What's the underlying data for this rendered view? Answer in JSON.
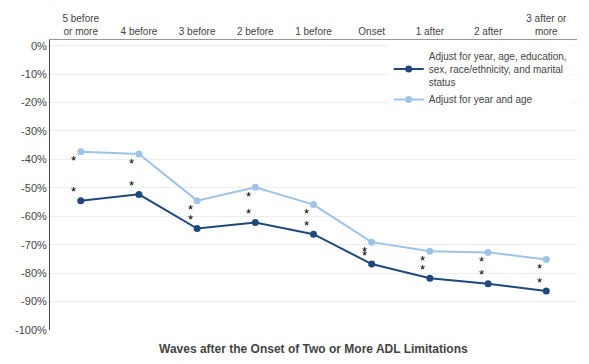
{
  "chart_data": {
    "type": "line",
    "xlabel": "Waves after the Onset of Two or More ADL Limitations",
    "categories": [
      "5 before\nor more",
      "4 before",
      "3 before",
      "2 before",
      "1 before",
      "Onset",
      "1 after",
      "2 after",
      "3 after or\nmore"
    ],
    "series": [
      {
        "name": "Adjust for year, age, education,\nsex, race/ethnicity, and marital\nstatus",
        "color": "#1F497D",
        "marker": "circle",
        "values": [
          -0.545,
          -0.523,
          -0.643,
          -0.622,
          -0.663,
          -0.768,
          -0.818,
          -0.837,
          -0.863
        ]
      },
      {
        "name": "Adjust for year and age",
        "color": "#9DC3E6",
        "marker": "circle",
        "values": [
          -0.373,
          -0.381,
          -0.545,
          -0.498,
          -0.559,
          -0.691,
          -0.723,
          -0.727,
          -0.752
        ]
      }
    ],
    "ylim": [
      -1.0,
      0.02
    ],
    "yticks": [
      {
        "value": 0.0,
        "label": "0%"
      },
      {
        "value": -0.1,
        "label": "-10%"
      },
      {
        "value": -0.2,
        "label": "-20%"
      },
      {
        "value": -0.3,
        "label": "-30%"
      },
      {
        "value": -0.4,
        "label": "-40%"
      },
      {
        "value": -0.5,
        "label": "-50%"
      },
      {
        "value": -0.6,
        "label": "-60%"
      },
      {
        "value": -0.7,
        "label": "-70%"
      },
      {
        "value": -0.8,
        "label": "-80%"
      },
      {
        "value": -0.9,
        "label": "-90%"
      },
      {
        "value": -1.0,
        "label": "-100%"
      }
    ],
    "grid": true,
    "legend": "upper right",
    "annotations": [
      {
        "text": "*",
        "x": "5 before\nor more",
        "y": -0.545
      },
      {
        "text": "*",
        "x": "4 before",
        "y": -0.523
      },
      {
        "text": "*",
        "x": "3 before",
        "y": -0.643
      },
      {
        "text": "*",
        "x": "2 before",
        "y": -0.622
      },
      {
        "text": "*",
        "x": "1 before",
        "y": -0.663
      },
      {
        "text": "*",
        "x": "Onset",
        "y": -0.768
      },
      {
        "text": "*",
        "x": "1 after",
        "y": -0.818
      },
      {
        "text": "*",
        "x": "2 after",
        "y": -0.837
      },
      {
        "text": "*",
        "x": "3 after or\nmore",
        "y": -0.863
      },
      {
        "text": "*",
        "x": "5 before\nor more",
        "y": -0.373
      },
      {
        "text": "*",
        "x": "4 before",
        "y": -0.381
      },
      {
        "text": "*",
        "x": "3 before",
        "y": -0.545
      },
      {
        "text": "*",
        "x": "2 before",
        "y": -0.498
      },
      {
        "text": "*",
        "x": "1 before",
        "y": -0.559
      },
      {
        "text": "*",
        "x": "Onset",
        "y": -0.691
      },
      {
        "text": "*",
        "x": "1 after",
        "y": -0.723
      },
      {
        "text": "*",
        "x": "2 after",
        "y": -0.727
      },
      {
        "text": "*",
        "x": "3 after or\nmore",
        "y": -0.752
      }
    ]
  }
}
